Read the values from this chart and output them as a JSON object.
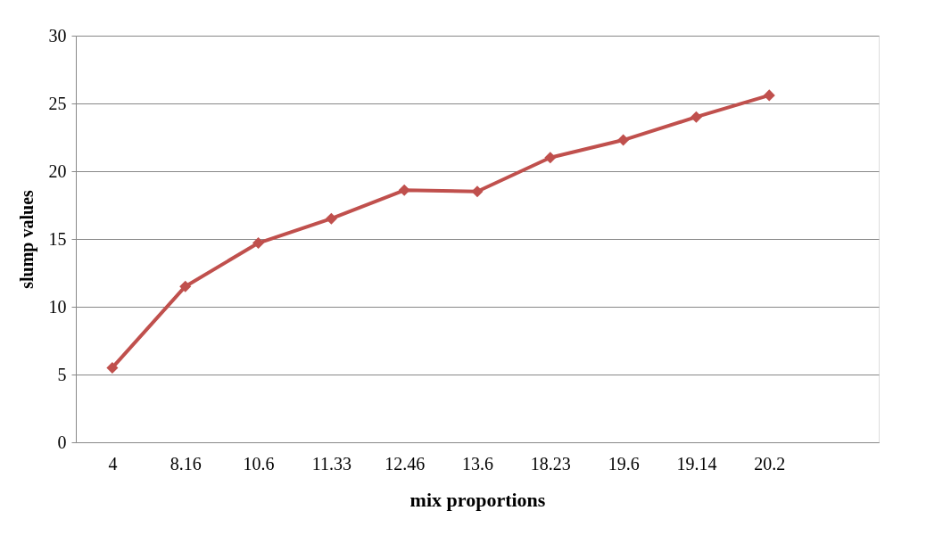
{
  "chart_data": {
    "type": "line",
    "xlabel": "mix proportions",
    "ylabel": "slump values",
    "categories": [
      "4",
      "8.16",
      "10.6",
      "11.33",
      "12.46",
      "13.6",
      "18.23",
      "19.6",
      "19.14",
      "20.2",
      null
    ],
    "series": [
      {
        "color": "#c0504d",
        "values": [
          5.5,
          11.5,
          14.7,
          16.5,
          18.6,
          18.5,
          21.0,
          22.3,
          24.0,
          25.6,
          null
        ]
      }
    ],
    "ylim": [
      0,
      30
    ],
    "yticks": [
      0,
      5,
      10,
      15,
      20,
      25,
      30
    ],
    "grid": "y",
    "marker": "diamond",
    "line_style": "solid"
  }
}
